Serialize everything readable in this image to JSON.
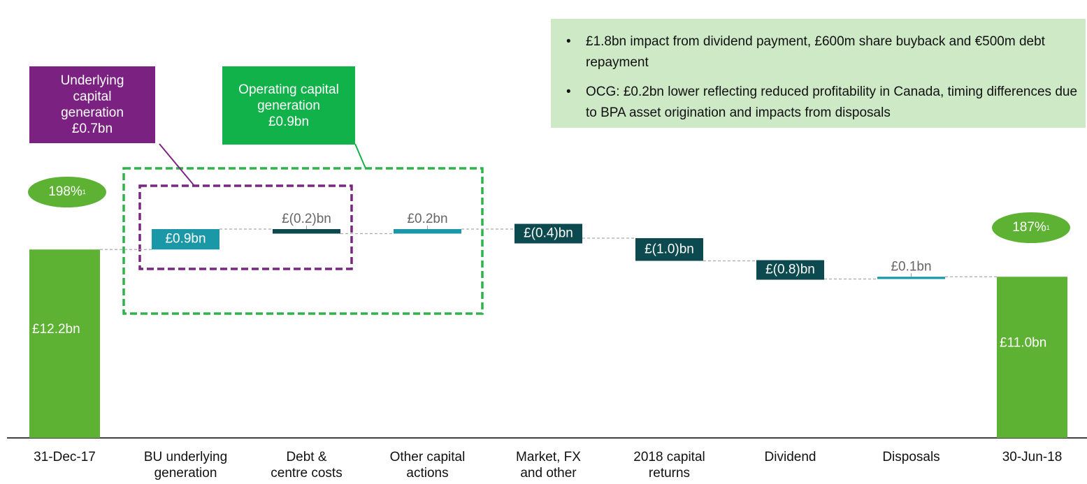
{
  "chart_data": {
    "type": "waterfall",
    "categories": [
      "31-Dec-17",
      "BU underlying\ngeneration",
      "Debt &\ncentre costs",
      "Other capital\nactions",
      "Market, FX\nand other",
      "2018 capital\nreturns",
      "Dividend",
      "Disposals",
      "30-Jun-18"
    ],
    "measures": [
      "total",
      "relative",
      "relative",
      "relative",
      "relative",
      "relative",
      "relative",
      "relative",
      "total"
    ],
    "values": [
      12.2,
      0.9,
      -0.2,
      0.2,
      -0.4,
      -1.0,
      -0.8,
      0.1,
      11.0
    ],
    "value_labels": [
      "£12.2bn",
      "£0.9bn",
      "£(0.2)bn",
      "£0.2bn",
      "£(0.4)bn",
      "£(1.0)bn",
      "£(0.8)bn",
      "£0.1bn",
      "£11.0bn"
    ],
    "colors": {
      "total": "#5db233",
      "increase": "#1b98a8",
      "decrease": "#0c4a4f"
    },
    "ylim": [
      3.9,
      14
    ],
    "annotations": {
      "solvency_start": {
        "text": "198%",
        "note": "1"
      },
      "solvency_end": {
        "text": "187%",
        "note": "1"
      },
      "underlying": "Underlying\ncapital\ngeneration\n£0.7bn",
      "operating": "Operating capital\ngeneration\n£0.9bn",
      "bullets": [
        "£1.8bn impact from dividend payment, £600m share buyback and €500m debt repayment",
        "OCG: £0.2bn lower reflecting reduced profitability in Canada, timing differences due to BPA asset origination and impacts from disposals"
      ]
    }
  }
}
